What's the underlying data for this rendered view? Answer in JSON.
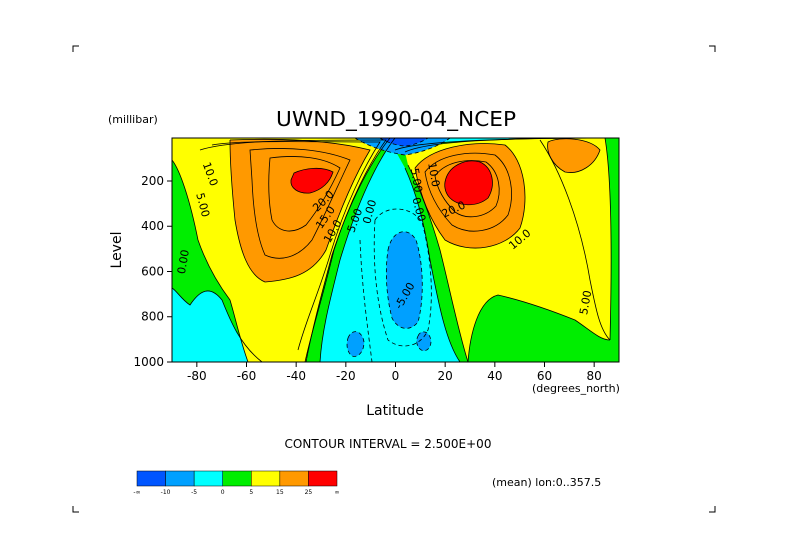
{
  "chart_data": {
    "type": "contour",
    "title": "UWND_1990-04_NCEP",
    "y_units": "(millibar)",
    "ylabel": "Level",
    "xlabel": "Latitude",
    "x_units": "(degrees_north)",
    "xlim": [
      -90,
      90
    ],
    "ylim": [
      1000,
      10
    ],
    "x_ticks": [
      -80,
      -60,
      -40,
      -20,
      0,
      20,
      40,
      60,
      80
    ],
    "x_tick_labels": [
      "-80",
      "-60",
      "-40",
      "-20",
      "0",
      "20",
      "40",
      "60",
      "80"
    ],
    "y_ticks": [
      200,
      400,
      600,
      800,
      1000
    ],
    "y_tick_labels": [
      "200",
      "400",
      "600",
      "800",
      "1000"
    ],
    "contour_interval_label": "CONTOUR INTERVAL = 2.500E+00",
    "contour_interval": 2.5,
    "region_label": "(mean) lon:0..357.5",
    "contour_labels": [
      {
        "text": "10.0",
        "lat": -76,
        "level": 175,
        "angle": 70
      },
      {
        "text": "5.00",
        "lat": -79,
        "level": 310,
        "angle": 75
      },
      {
        "text": "0.00",
        "lat": -84,
        "level": 560,
        "angle": -80
      },
      {
        "text": "20.0",
        "lat": -28,
        "level": 300,
        "angle": -45
      },
      {
        "text": "15.0",
        "lat": -27,
        "level": 370,
        "angle": -55
      },
      {
        "text": "10.0",
        "lat": -24,
        "level": 430,
        "angle": -60
      },
      {
        "text": "5.00",
        "lat": -15,
        "level": 380,
        "angle": -70
      },
      {
        "text": "0.00",
        "lat": -9,
        "level": 340,
        "angle": -75
      },
      {
        "text": "5.00",
        "lat": 7,
        "level": 200,
        "angle": 80
      },
      {
        "text": "10.0",
        "lat": 14,
        "level": 175,
        "angle": 80
      },
      {
        "text": "0.00",
        "lat": 8,
        "level": 330,
        "angle": 75
      },
      {
        "text": "20.0",
        "lat": 24,
        "level": 340,
        "angle": -25
      },
      {
        "text": "-5.00",
        "lat": 5,
        "level": 715,
        "angle": -60
      },
      {
        "text": "10.0",
        "lat": 51,
        "level": 470,
        "angle": -40
      },
      {
        "text": "5.00",
        "lat": 78,
        "level": 740,
        "angle": -80
      }
    ],
    "colorbar": {
      "colors": [
        "#0055ff",
        "#00a0ff",
        "#00ffff",
        "#00ee00",
        "#ffff00",
        "#ff9900",
        "#ff0000"
      ],
      "tick_labels": [
        "-∞",
        "-10",
        "-5",
        "0",
        "5",
        "15",
        "25",
        "∞"
      ]
    }
  }
}
